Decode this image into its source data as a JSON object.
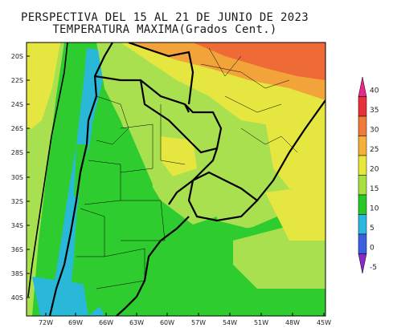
{
  "map": {
    "title_line1": "PERSPECTIVA DEL 15 AL 21 DE JUNIO DE 2023",
    "title_line2": "TEMPERATURA MAXIMA(Grados Cent.)",
    "lat_ticks": [
      "20S",
      "22S",
      "24S",
      "26S",
      "28S",
      "30S",
      "32S",
      "34S",
      "36S",
      "38S",
      "40S"
    ],
    "lon_ticks": [
      "72W",
      "69W",
      "66W",
      "63W",
      "60W",
      "57W",
      "54W",
      "51W",
      "48W",
      "45W"
    ]
  },
  "legend": {
    "labels": [
      "40",
      "35",
      "30",
      "25",
      "20",
      "15",
      "10",
      "5",
      "0",
      "-5"
    ],
    "colors": [
      "#e8288e",
      "#e8303a",
      "#f07a3a",
      "#f5b03c",
      "#e8e83c",
      "#a8e040",
      "#28c828",
      "#28b8e0",
      "#3a60e0",
      "#8a28c8"
    ]
  },
  "colors": {
    "ocean_cool": "#2ecc2e",
    "land_mild": "#a8e050",
    "warm": "#e6e640",
    "hot": "#f2a43a",
    "very_hot": "#ee6a36",
    "cold": "#2ab8d8",
    "border": "#000000"
  }
}
